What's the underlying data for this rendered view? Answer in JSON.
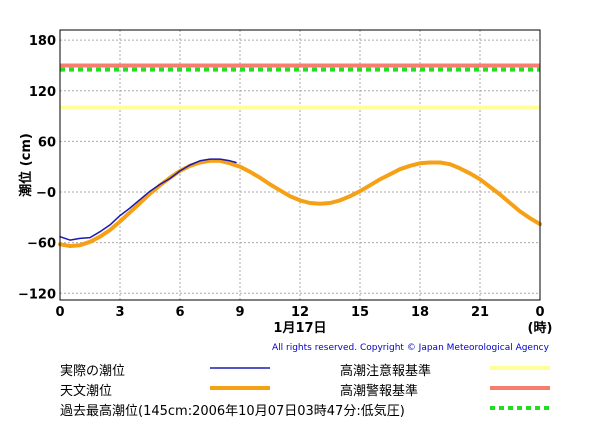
{
  "chart_data": {
    "type": "line",
    "y_label": "潮位 (cm)",
    "x_date_label": "1月17日",
    "x_unit_label": "(時)",
    "x_ticks": [
      "0",
      "3",
      "6",
      "9",
      "12",
      "15",
      "18",
      "21",
      "0"
    ],
    "y_ticks": [
      "180",
      "120",
      "60",
      "−0",
      "−60",
      "−120"
    ],
    "y_tick_values": [
      180,
      120,
      60,
      0,
      -60,
      -120
    ],
    "x_range": [
      0,
      24
    ],
    "y_range": [
      -128,
      192
    ],
    "grid": true,
    "series": [
      {
        "name": "実際の潮位",
        "color": "#1a1ab0",
        "x": [
          0,
          0.5,
          1,
          1.5,
          2,
          2.5,
          3,
          3.5,
          4,
          4.5,
          5,
          5.5,
          6,
          6.5,
          7,
          7.5,
          8,
          8.5,
          8.8
        ],
        "y": [
          -53,
          -57,
          -55,
          -54,
          -47,
          -39,
          -28,
          -19,
          -9,
          1,
          9,
          16,
          25,
          32,
          37,
          39,
          39,
          37,
          35
        ]
      },
      {
        "name": "天文潮位",
        "color": "#f5a015",
        "x": [
          0,
          0.5,
          1,
          1.5,
          2,
          2.5,
          3,
          3.5,
          4,
          4.5,
          5,
          5.5,
          6,
          6.5,
          7,
          7.5,
          8,
          8.5,
          9,
          9.5,
          10,
          10.5,
          11,
          11.5,
          12,
          12.5,
          13,
          13.5,
          14,
          14.5,
          15,
          15.5,
          16,
          16.5,
          17,
          17.5,
          18,
          18.5,
          19,
          19.5,
          20,
          20.5,
          21,
          21.5,
          22,
          22.5,
          23,
          23.5,
          24
        ],
        "y": [
          -62,
          -64,
          -63,
          -59,
          -53,
          -45,
          -35,
          -24,
          -13,
          -2,
          8,
          17,
          25,
          31,
          35,
          37,
          37,
          34,
          30,
          24,
          17,
          9,
          2,
          -5,
          -10,
          -13,
          -14,
          -13,
          -10,
          -5,
          1,
          8,
          15,
          21,
          27,
          31,
          34,
          35,
          35,
          33,
          28,
          22,
          15,
          6,
          -3,
          -13,
          -23,
          -31,
          -38
        ]
      }
    ],
    "reference_lines": [
      {
        "name": "高潮注意報基準",
        "value": 100,
        "color": "#ffff99",
        "style": "solid"
      },
      {
        "name": "高潮警報基準",
        "value": 150,
        "color": "#f77d6e",
        "style": "solid"
      },
      {
        "name": "過去最高潮位(145cm:2006年10月07日03時47分:低気圧)",
        "value": 145,
        "color": "#22dd22",
        "style": "dashed"
      }
    ]
  },
  "copyright": "All rights reserved. Copyright © Japan Meteorological Agency",
  "legend": {
    "actual": "実際の潮位",
    "astronomical": "天文潮位",
    "record": "過去最高潮位(145cm:2006年10月07日03時47分:低気圧)",
    "advisory": "高潮注意報基準",
    "warning": "高潮警報基準"
  }
}
